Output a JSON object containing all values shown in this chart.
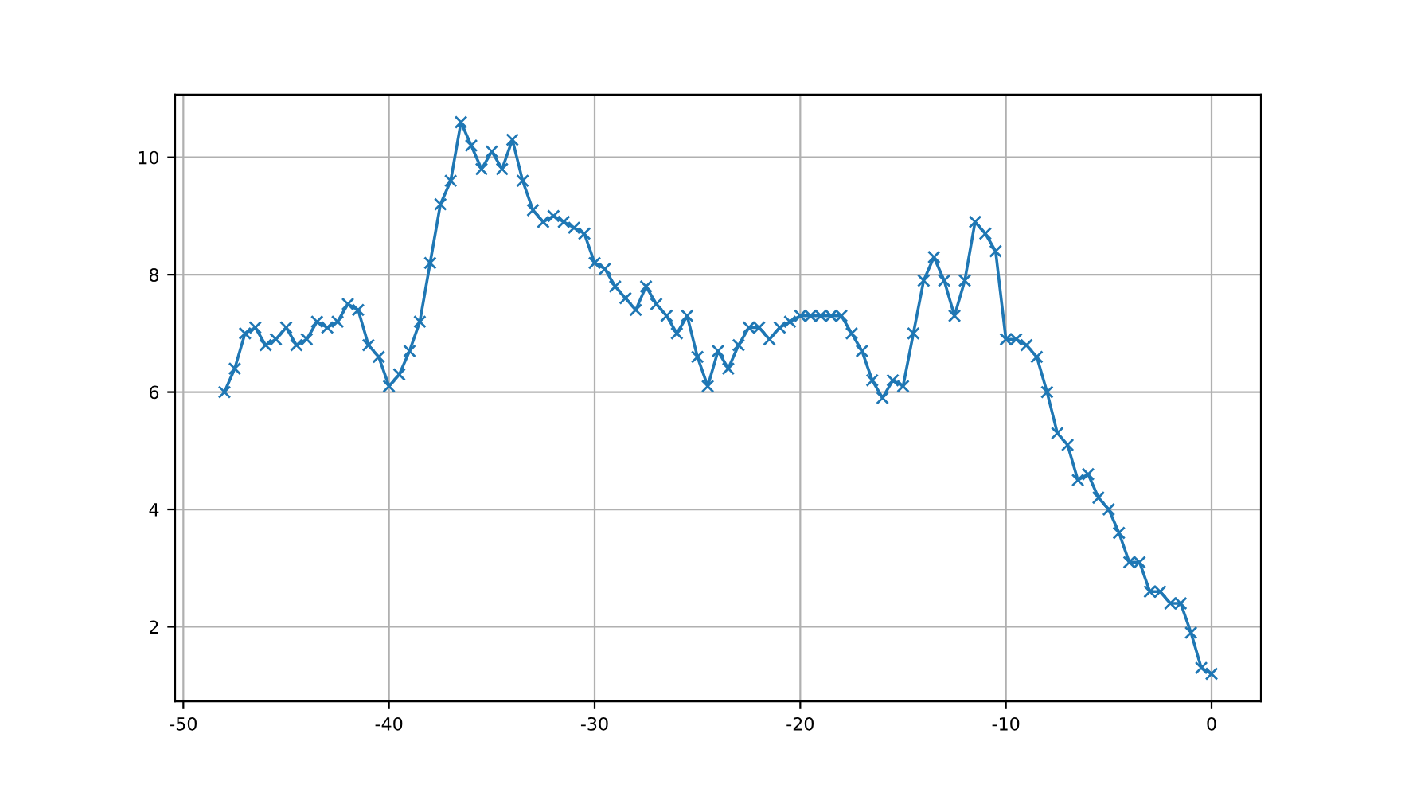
{
  "chart_data": {
    "type": "line",
    "marker": "cross",
    "line_style": "solid",
    "grid": true,
    "x": [
      -48,
      -47.5,
      -47,
      -46.5,
      -46,
      -45.5,
      -45,
      -44.5,
      -44,
      -43.5,
      -43,
      -42.5,
      -42,
      -41.5,
      -41,
      -40.5,
      -40,
      -39.5,
      -39,
      -38.5,
      -38,
      -37.5,
      -37,
      -36.5,
      -36,
      -35.5,
      -35,
      -34.5,
      -34,
      -33.5,
      -33,
      -32.5,
      -32,
      -31.5,
      -31,
      -30.5,
      -30,
      -29.5,
      -29,
      -28.5,
      -28,
      -27.5,
      -27,
      -26.5,
      -26,
      -25.5,
      -25,
      -24.5,
      -24,
      -23.5,
      -23,
      -22.5,
      -22,
      -21.5,
      -21,
      -20.5,
      -20,
      -19.5,
      -19,
      -18.5,
      -18,
      -17.5,
      -17,
      -16.5,
      -16,
      -15.5,
      -15,
      -14.5,
      -14,
      -13.5,
      -13,
      -12.5,
      -12,
      -11.5,
      -11,
      -10.5,
      -10,
      -9.5,
      -9,
      -8.5,
      -8,
      -7.5,
      -7,
      -6.5,
      -6,
      -5.5,
      -5,
      -4.5,
      -4,
      -3.5,
      -3,
      -2.5,
      -2,
      -1.5,
      -1,
      -0.5,
      0
    ],
    "series": [
      {
        "color": "#1f77b4",
        "values": [
          6.0,
          6.4,
          7.0,
          7.1,
          6.8,
          6.9,
          7.1,
          6.8,
          6.9,
          7.2,
          7.1,
          7.2,
          7.5,
          7.4,
          6.8,
          6.6,
          6.1,
          6.3,
          6.7,
          7.2,
          8.2,
          9.2,
          9.6,
          10.6,
          10.2,
          9.8,
          10.1,
          9.8,
          10.3,
          9.6,
          9.1,
          8.9,
          9.0,
          8.9,
          8.8,
          8.7,
          8.2,
          8.1,
          7.8,
          7.6,
          7.4,
          7.8,
          7.5,
          7.3,
          7.0,
          7.3,
          6.6,
          6.1,
          6.7,
          6.4,
          6.8,
          7.1,
          7.1,
          6.9,
          7.1,
          7.2,
          7.3,
          7.3,
          7.3,
          7.3,
          7.3,
          7.0,
          6.7,
          6.2,
          5.9,
          6.2,
          6.1,
          7.0,
          7.9,
          8.3,
          7.9,
          7.3,
          7.9,
          8.9,
          8.7,
          8.4,
          6.9,
          6.9,
          6.8,
          6.6,
          6.0,
          5.3,
          5.1,
          4.5,
          4.6,
          4.2,
          4.0,
          3.6,
          3.1,
          3.1,
          2.6,
          2.6,
          2.4,
          2.4,
          1.9,
          1.3,
          1.2
        ]
      }
    ],
    "xlim": [
      -50.4,
      2.4
    ],
    "xticks": [
      -50,
      -40,
      -30,
      -20,
      -10,
      0
    ],
    "ylim": [
      0.73,
      11.07
    ],
    "yticks": [
      2,
      4,
      6,
      8,
      10
    ]
  }
}
